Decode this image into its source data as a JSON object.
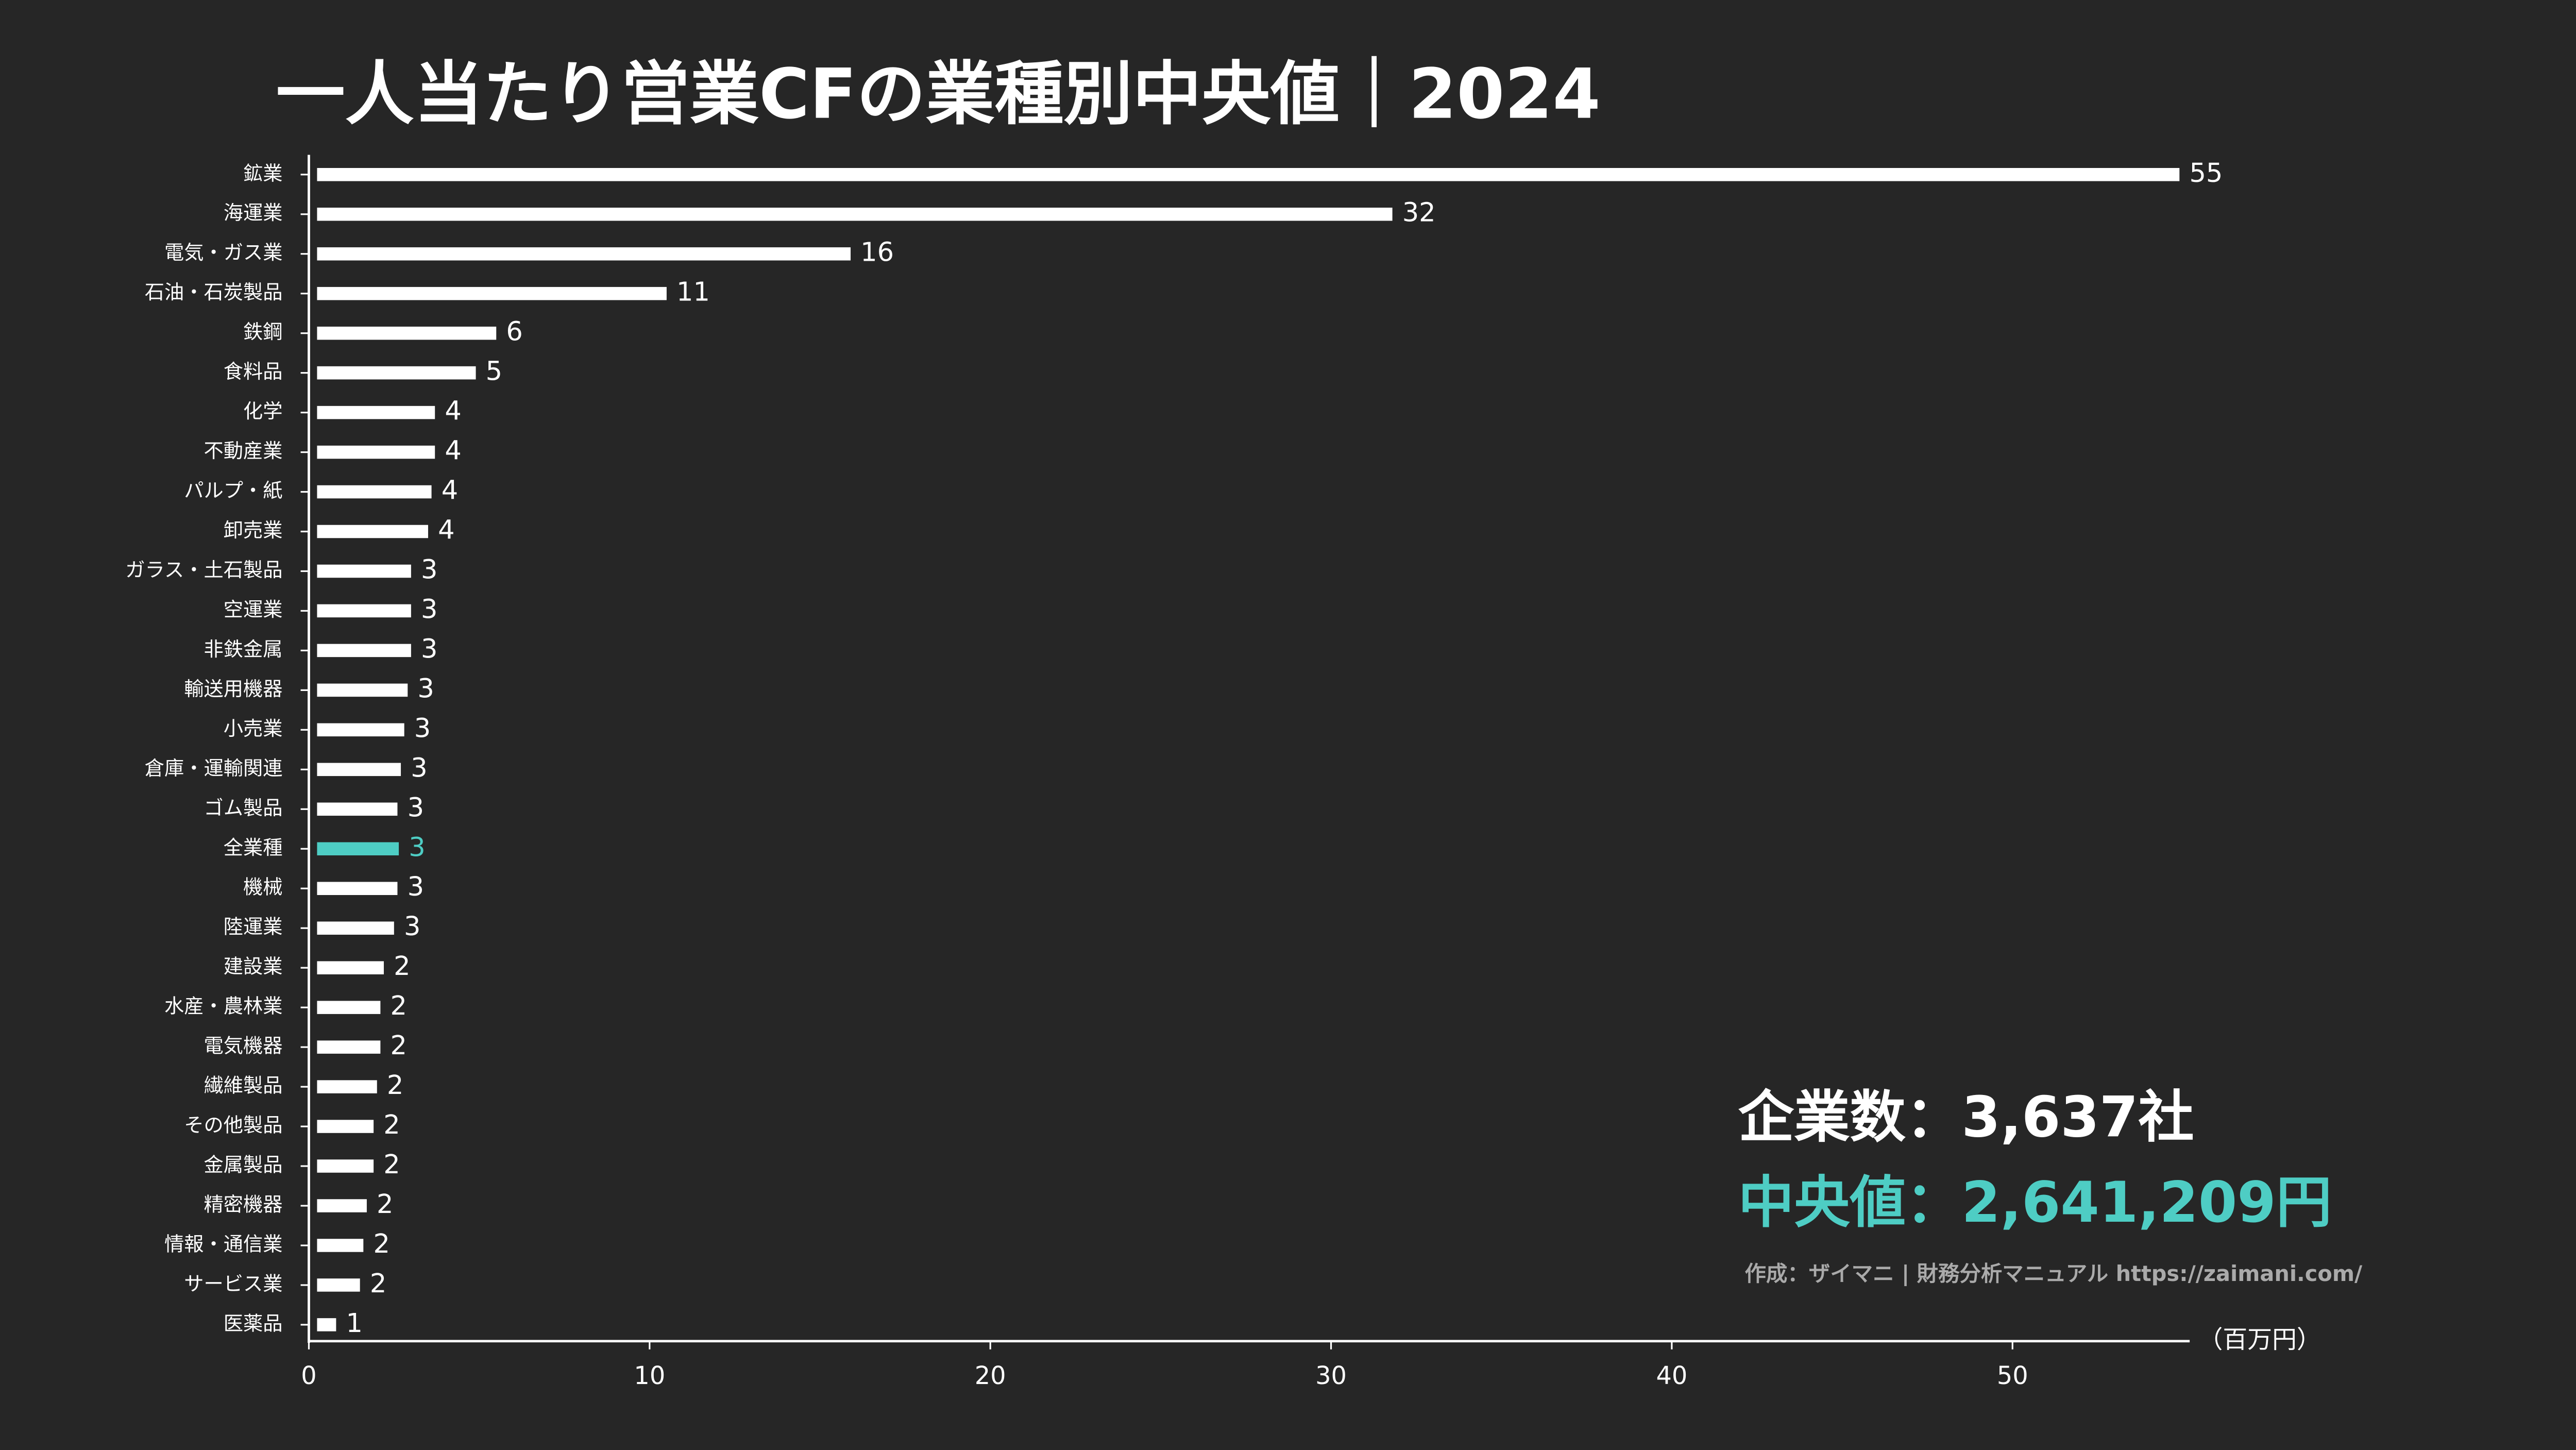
{
  "chart_data": {
    "type": "barh",
    "title": "一人当たり営業CFの業種別中央値｜2024",
    "categories": [
      "鉱業",
      "海運業",
      "電気・ガス業",
      "石油・石炭製品",
      "鉄鋼",
      "食料品",
      "化学",
      "不動産業",
      "パルプ・紙",
      "卸売業",
      "ガラス・土石製品",
      "空運業",
      "非鉄金属",
      "輸送用機器",
      "小売業",
      "倉庫・運輸関連",
      "ゴム製品",
      "全業種",
      "機械",
      "陸運業",
      "建設業",
      "水産・農林業",
      "電気機器",
      "繊維製品",
      "その他製品",
      "金属製品",
      "精密機器",
      "情報・通信業",
      "サービス業",
      "医薬品"
    ],
    "values": [
      54.9,
      31.8,
      15.9,
      10.5,
      5.5,
      4.9,
      3.7,
      3.7,
      3.6,
      3.5,
      3.0,
      3.0,
      3.0,
      2.9,
      2.8,
      2.7,
      2.6,
      2.64,
      2.6,
      2.5,
      2.2,
      2.1,
      2.1,
      2.0,
      1.9,
      1.9,
      1.7,
      1.6,
      1.5,
      0.8
    ],
    "value_labels": [
      "55",
      "32",
      "16",
      "11",
      "6",
      "5",
      "4",
      "4",
      "4",
      "4",
      "3",
      "3",
      "3",
      "3",
      "3",
      "3",
      "3",
      "3",
      "3",
      "3",
      "2",
      "2",
      "2",
      "2",
      "2",
      "2",
      "2",
      "2",
      "2",
      "1"
    ],
    "colors": [
      "#ffffff",
      "#ffffff",
      "#ffffff",
      "#ffffff",
      "#ffffff",
      "#ffffff",
      "#ffffff",
      "#ffffff",
      "#ffffff",
      "#ffffff",
      "#ffffff",
      "#ffffff",
      "#ffffff",
      "#ffffff",
      "#ffffff",
      "#ffffff",
      "#ffffff",
      "#4ecdc4",
      "#ffffff",
      "#ffffff",
      "#ffffff",
      "#ffffff",
      "#ffffff",
      "#ffffff",
      "#ffffff",
      "#ffffff",
      "#ffffff",
      "#ffffff",
      "#ffffff",
      "#ffffff"
    ],
    "xlim": [
      0,
      55.2
    ],
    "xticks": [
      0,
      10,
      20,
      30,
      40,
      50
    ],
    "x_unit": "（百万円）",
    "annotations": [
      "企業数：3,637社",
      "中央値：2,641,209円"
    ],
    "source": "作成：ザイマニ | 財務分析マニュアル https://zaimani.com/"
  }
}
